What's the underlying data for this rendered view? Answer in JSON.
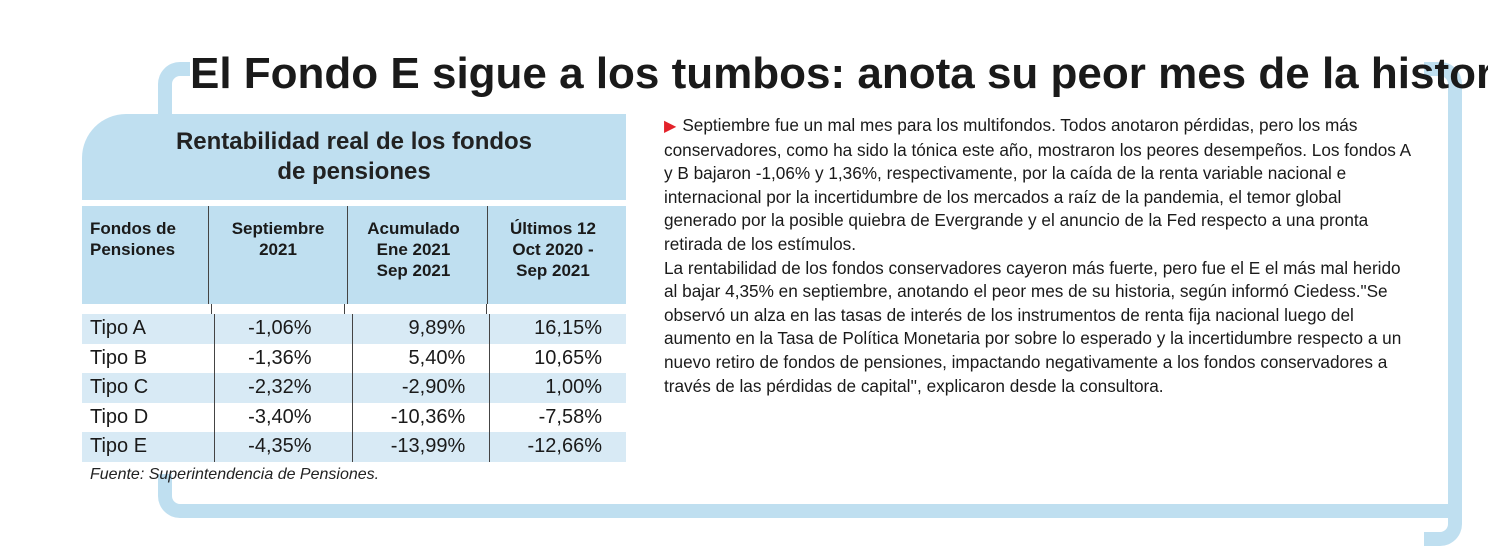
{
  "headline": "El Fondo E sigue a los tumbos: anota su peor mes de la historia",
  "table": {
    "title_line1": "Rentabilidad real de los fondos",
    "title_line2": "de pensiones",
    "headers": [
      [
        "Fondos de",
        "Pensiones"
      ],
      [
        "Septiembre",
        "2021"
      ],
      [
        "Acumulado",
        "Ene 2021",
        "Sep 2021"
      ],
      [
        "Últimos 12",
        "Oct 2020 -",
        "Sep 2021"
      ]
    ],
    "rows": [
      [
        "Tipo A",
        "-1,06%",
        "9,89%",
        "16,15%"
      ],
      [
        "Tipo B",
        "-1,36%",
        "5,40%",
        "10,65%"
      ],
      [
        "Tipo C",
        "-2,32%",
        "-2,90%",
        "1,00%"
      ],
      [
        "Tipo D",
        "-3,40%",
        "-10,36%",
        "-7,58%"
      ],
      [
        "Tipo E",
        "-4,35%",
        "-13,99%",
        "-12,66%"
      ]
    ],
    "source": "Fuente: Superintendencia de Pensiones."
  },
  "article": {
    "paragraph1": "Septiembre fue un mal mes para los multifondos. Todos anotaron pérdidas, pero los más conservadores, como ha sido la tónica este año, mostraron los peores desempeños. Los fondos A y B bajaron -1,06% y 1,36%, respectivamente, por la caída de la renta variable nacional e internacional por la incertidumbre de los mercados a raíz de la pandemia, el temor global generado por la posible quiebra de Evergrande y el anuncio de la Fed respecto a una pronta retirada de los estímulos.",
    "paragraph2": "La rentabilidad de los fondos conservadores cayeron más fuerte, pero fue el E el más mal herido al bajar 4,35% en septiembre, anotando el peor mes de su historia, según informó Ciedess.\"Se observó un alza en las tasas de interés de los instrumentos de renta fija nacional luego del aumento en la Tasa de Política Monetaria por sobre lo esperado y la incertidumbre respecto a un nuevo retiro de fondos de pensiones, impactando negativamente a los fondos conservadores a través de las pérdidas de capital'', explicaron desde la consultora."
  },
  "colors": {
    "accent_blue": "#bfdff0",
    "row_alt": "#d8eaf5",
    "bullet_red": "#e3222a"
  },
  "icons": {
    "bullet": "triangle-right-icon"
  }
}
